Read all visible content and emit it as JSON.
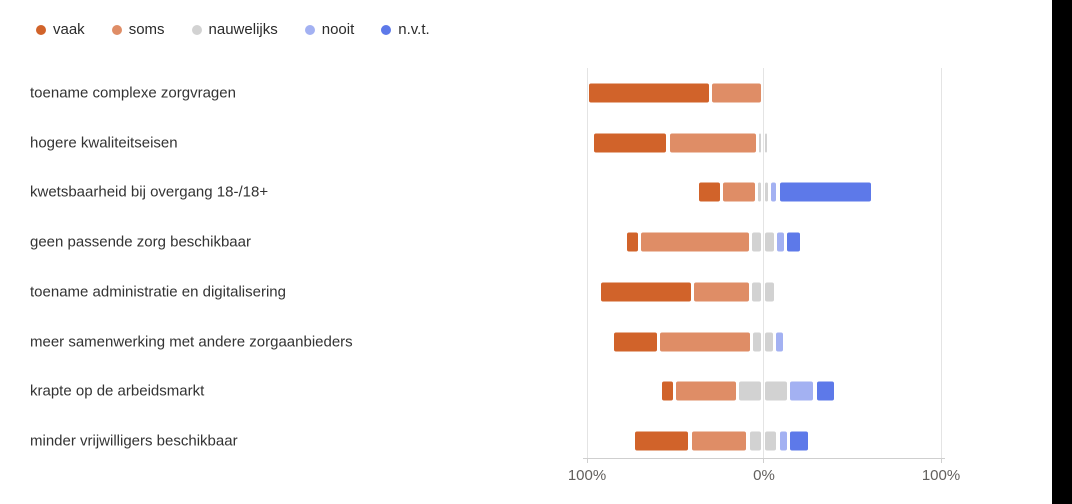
{
  "chart_data": {
    "type": "bar",
    "variant": "diverging-stacked-horizontal-100pct",
    "title": "",
    "categories": [
      "toename complexe zorgvragen",
      "hogere kwaliteitseisen",
      "kwetsbaarheid bij overgang 18-/18+",
      "geen passende zorg beschikbaar",
      "toename administratie en digitalisering",
      "meer samenwerking met andere zorgaanbieders",
      "krapte op de arbeidsmarkt",
      "minder vrijwilligers beschikbaar"
    ],
    "series": [
      {
        "name": "vaak",
        "color": "#d1632a",
        "values": [
          70,
          43,
          14,
          8,
          53,
          26,
          8,
          32
        ]
      },
      {
        "name": "soms",
        "color": "#df8d66",
        "values": [
          30,
          51,
          20,
          63,
          33,
          53,
          36,
          33
        ]
      },
      {
        "name": "nauwelijks",
        "color": "#d2d2d2",
        "values": [
          0,
          6,
          7,
          14,
          14,
          13,
          29,
          17
        ]
      },
      {
        "name": "nooit",
        "color": "#a3b1f2",
        "values": [
          0,
          0,
          5,
          6,
          0,
          6,
          15,
          6
        ]
      },
      {
        "name": "n.v.t.",
        "color": "#5d79e9",
        "values": [
          0,
          0,
          54,
          9,
          0,
          2,
          12,
          12
        ]
      }
    ],
    "x_axis": {
      "tick_labels": [
        "100%",
        "0%",
        "100%"
      ],
      "range_left_pct": 100,
      "range_right_pct": 100
    },
    "layout_note": "vaak and soms stack left of the 0% line, nauwelijks straddles the 0% line centered, nooit and n.v.t. stack right of it",
    "legend_position": "top-left",
    "grid": "three vertical gridlines at -100%, 0%, +100%"
  }
}
